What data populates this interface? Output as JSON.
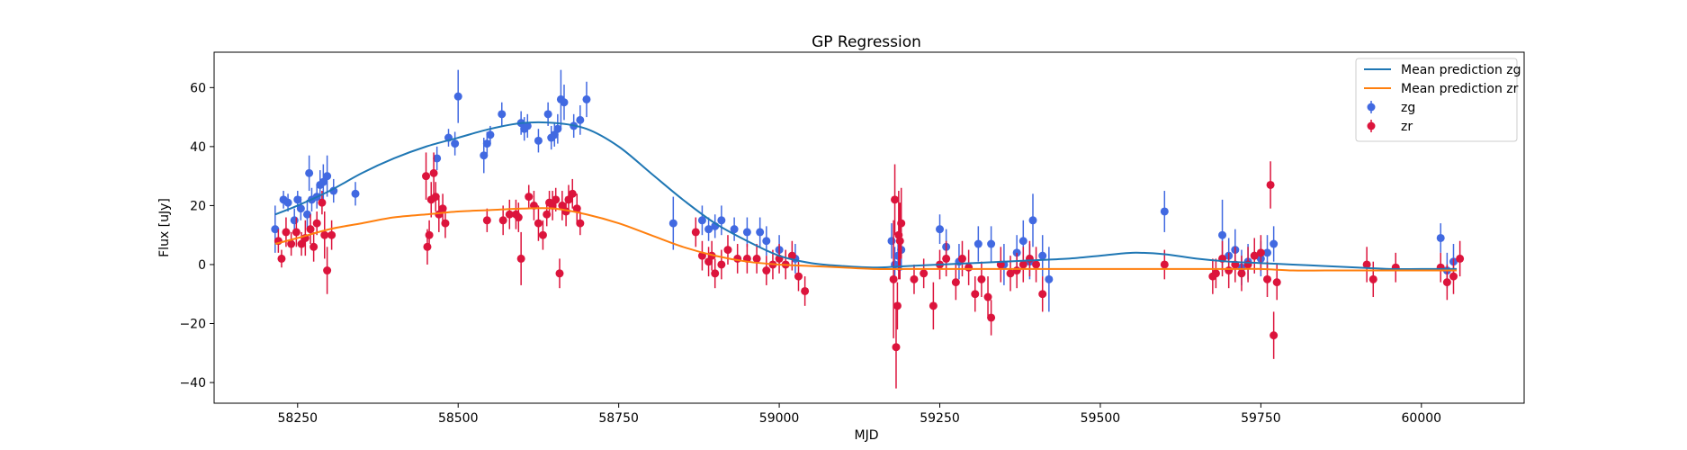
{
  "chart_data": {
    "type": "scatter",
    "title": "GP Regression",
    "xlabel": "MJD",
    "ylabel": "Flux [uJy]",
    "xlim": [
      58120,
      60160
    ],
    "ylim": [
      -47,
      72
    ],
    "xticks": [
      58250,
      58500,
      58750,
      59000,
      59250,
      59500,
      59750,
      60000
    ],
    "yticks": [
      -40,
      -20,
      0,
      20,
      40,
      60
    ],
    "grid": false,
    "legend_position": "top-right",
    "lines": [
      {
        "name": "Mean prediction zg",
        "color": "#1f77b4",
        "x": [
          58215,
          58250,
          58300,
          58350,
          58400,
          58450,
          58500,
          58550,
          58600,
          58650,
          58700,
          58750,
          58800,
          58850,
          58900,
          58950,
          59000,
          59050,
          59100,
          59150,
          59200,
          59250,
          59300,
          59350,
          59400,
          59450,
          59500,
          59550,
          59600,
          59650,
          59700,
          59750,
          59800,
          59850,
          59900,
          59950,
          60000,
          60055
        ],
        "y": [
          17,
          20,
          25,
          31,
          36,
          40,
          43,
          46,
          48,
          48,
          46,
          40,
          31,
          22,
          14,
          8,
          3,
          0.5,
          -0.5,
          -1,
          -0.5,
          0,
          0.5,
          1,
          1.5,
          2,
          3,
          4,
          3.5,
          2,
          1,
          0.5,
          0,
          -0.5,
          -1,
          -1.5,
          -1.5,
          -1.5
        ]
      },
      {
        "name": "Mean prediction zr",
        "color": "#ff7f0e",
        "x": [
          58215,
          58250,
          58300,
          58350,
          58400,
          58450,
          58500,
          58550,
          58600,
          58650,
          58700,
          58750,
          58800,
          58850,
          58900,
          58950,
          59000,
          59050,
          59100,
          59150,
          59200,
          59250,
          59300,
          59350,
          59400,
          59450,
          59500,
          59550,
          59600,
          59650,
          59700,
          59750,
          59800,
          59850,
          59900,
          59950,
          60000,
          60055
        ],
        "y": [
          7,
          9,
          12,
          14,
          16,
          17,
          18,
          18.5,
          19,
          19,
          17,
          14,
          10,
          6,
          3,
          1,
          0,
          -0.5,
          -1,
          -1.5,
          -1.5,
          -1.5,
          -1.5,
          -1.5,
          -1.5,
          -1.5,
          -1.5,
          -1.5,
          -1.5,
          -1.5,
          -1.5,
          -1.5,
          -2,
          -2,
          -2,
          -2,
          -2,
          -2
        ]
      }
    ],
    "series": [
      {
        "name": "zg",
        "color": "#4169e1",
        "x": [
          58215,
          58228,
          58235,
          58245,
          58250,
          58255,
          58265,
          58268,
          58272,
          58280,
          58285,
          58290,
          58296,
          58306,
          58340,
          58467,
          58485,
          58495,
          58500,
          58540,
          58545,
          58550,
          58568,
          58598,
          58603,
          58608,
          58625,
          58640,
          58645,
          58650,
          58655,
          58660,
          58665,
          58680,
          58690,
          58700,
          58835,
          58880,
          58890,
          58900,
          58910,
          58930,
          58950,
          58970,
          58980,
          59000,
          59025,
          59175,
          59180,
          59185,
          59190,
          59250,
          59260,
          59280,
          59310,
          59330,
          59350,
          59370,
          59380,
          59390,
          59395,
          59410,
          59420,
          59600,
          59690,
          59700,
          59710,
          59720,
          59730,
          59740,
          59750,
          59760,
          59770,
          60030,
          60040,
          60050
        ],
        "y": [
          12,
          22,
          21,
          15,
          22,
          19,
          17,
          31,
          22,
          23,
          27,
          28,
          30,
          25,
          24,
          36,
          43,
          41,
          57,
          37,
          41,
          44,
          51,
          48,
          46,
          47,
          42,
          51,
          43,
          44,
          46,
          56,
          55,
          47,
          49,
          56,
          14,
          15,
          12,
          13,
          15,
          12,
          11,
          11,
          8,
          5,
          2,
          8,
          0,
          3,
          5,
          12,
          6,
          1,
          7,
          7,
          0,
          4,
          8,
          1,
          15,
          3,
          -5,
          18,
          10,
          3,
          5,
          -1,
          1,
          3,
          2,
          4,
          7,
          9,
          -2,
          1
        ],
        "err": [
          8,
          3,
          3,
          4,
          3,
          4,
          5,
          6,
          4,
          4,
          5,
          6,
          7,
          4,
          4,
          4,
          3,
          4,
          9,
          6,
          4,
          3,
          4,
          4,
          4,
          4,
          4,
          4,
          4,
          4,
          5,
          10,
          6,
          4,
          5,
          6,
          9,
          5,
          4,
          4,
          5,
          4,
          5,
          5,
          5,
          5,
          5,
          6,
          6,
          5,
          7,
          5,
          6,
          6,
          6,
          6,
          7,
          6,
          7,
          6,
          9,
          7,
          11,
          7,
          12,
          6,
          7,
          6,
          6,
          6,
          6,
          6,
          6,
          5,
          6,
          6
        ]
      },
      {
        "name": "zr",
        "color": "#dc143c",
        "x": [
          58220,
          58225,
          58232,
          58240,
          58248,
          58256,
          58262,
          58270,
          58275,
          58280,
          58288,
          58292,
          58296,
          58303,
          58450,
          58452,
          58455,
          58458,
          58462,
          58465,
          58470,
          58476,
          58480,
          58545,
          58570,
          58580,
          58590,
          58594,
          58598,
          58610,
          58618,
          58625,
          58632,
          58638,
          58642,
          58647,
          58652,
          58658,
          58662,
          58668,
          58672,
          58678,
          58685,
          58690,
          58870,
          58880,
          58890,
          58895,
          58900,
          58910,
          58920,
          58935,
          58950,
          58965,
          58980,
          58990,
          59000,
          59010,
          59020,
          59030,
          59040,
          59178,
          59180,
          59182,
          59184,
          59186,
          59188,
          59190,
          59210,
          59225,
          59240,
          59250,
          59260,
          59275,
          59285,
          59295,
          59305,
          59315,
          59325,
          59330,
          59345,
          59360,
          59370,
          59380,
          59390,
          59400,
          59410,
          59600,
          59675,
          59680,
          59690,
          59700,
          59710,
          59720,
          59730,
          59740,
          59750,
          59760,
          59765,
          59770,
          59775,
          59915,
          59925,
          59960,
          60030,
          60040,
          60050,
          60060
        ],
        "y": [
          8,
          2,
          11,
          7,
          11,
          7,
          9,
          12,
          6,
          14,
          21,
          10,
          -2,
          10,
          30,
          6,
          10,
          22,
          31,
          23,
          17,
          19,
          14,
          15,
          15,
          17,
          17,
          16,
          2,
          23,
          20,
          14,
          10,
          17,
          21,
          20,
          22,
          -3,
          20,
          18,
          22,
          24,
          19,
          14,
          11,
          3,
          1,
          3,
          -3,
          0,
          5,
          2,
          2,
          2,
          -2,
          0,
          2,
          0,
          3,
          -4,
          -9,
          -5,
          22,
          -28,
          -14,
          10,
          8,
          14,
          -5,
          -3,
          -14,
          0,
          2,
          -6,
          2,
          -1,
          -10,
          -5,
          -11,
          -18,
          0,
          -3,
          -2,
          0,
          2,
          0,
          -10,
          0,
          -4,
          -3,
          2,
          -2,
          0,
          -3,
          0,
          3,
          4,
          -5,
          27,
          -24,
          -6,
          0,
          -5,
          -1,
          -1,
          -6,
          -4,
          2
        ],
        "err": [
          4,
          3,
          5,
          4,
          5,
          4,
          6,
          5,
          5,
          4,
          4,
          8,
          8,
          5,
          8,
          6,
          5,
          6,
          7,
          5,
          6,
          5,
          5,
          4,
          5,
          5,
          5,
          5,
          9,
          4,
          5,
          6,
          5,
          4,
          4,
          5,
          4,
          5,
          5,
          5,
          5,
          5,
          5,
          4,
          5,
          5,
          5,
          5,
          5,
          5,
          5,
          5,
          5,
          5,
          5,
          5,
          5,
          5,
          5,
          5,
          5,
          20,
          12,
          14,
          8,
          15,
          13,
          12,
          5,
          5,
          8,
          5,
          6,
          6,
          6,
          6,
          6,
          6,
          7,
          6,
          6,
          6,
          6,
          6,
          6,
          6,
          6,
          5,
          6,
          5,
          6,
          6,
          6,
          6,
          6,
          6,
          6,
          6,
          8,
          8,
          6,
          6,
          6,
          5,
          5,
          6,
          6,
          6
        ]
      }
    ]
  }
}
